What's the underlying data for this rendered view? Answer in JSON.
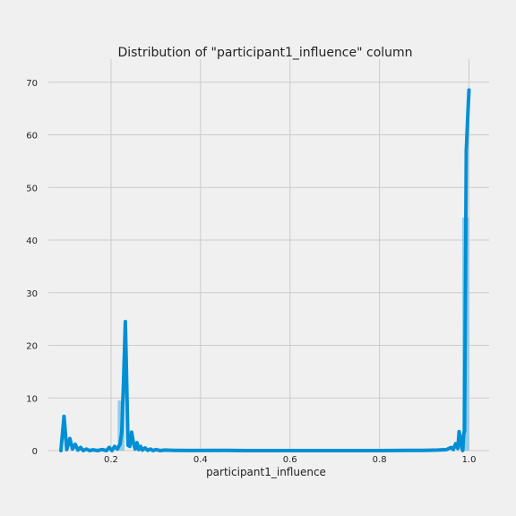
{
  "chart_data": {
    "type": "area",
    "title": "Distribution of \"participant1_influence\" column",
    "xlabel": "participant1_influence",
    "ylabel": "",
    "xlim": [
      0.06,
      1.045
    ],
    "ylim": [
      0,
      72
    ],
    "x_ticks": [
      0.2,
      0.4,
      0.6,
      0.8,
      1.0
    ],
    "x_tick_labels": [
      "0.2",
      "0.4",
      "0.6",
      "0.8",
      "1.0"
    ],
    "y_ticks": [
      0,
      10,
      20,
      30,
      40,
      50,
      60,
      70
    ],
    "y_tick_labels": [
      "0",
      "10",
      "20",
      "30",
      "40",
      "50",
      "60",
      "70"
    ],
    "grid": true,
    "legend": "none",
    "histogram": {
      "bins": [
        {
          "x0": 0.215,
          "x1": 0.23,
          "value": 9.5
        },
        {
          "x0": 0.985,
          "x1": 1.0,
          "value": 44.3
        }
      ]
    },
    "kde": {
      "x": [
        0.088,
        0.095,
        0.101,
        0.108,
        0.114,
        0.12,
        0.126,
        0.132,
        0.138,
        0.145,
        0.152,
        0.16,
        0.17,
        0.18,
        0.19,
        0.196,
        0.202,
        0.208,
        0.214,
        0.22,
        0.224,
        0.228,
        0.232,
        0.235,
        0.238,
        0.242,
        0.246,
        0.25,
        0.254,
        0.258,
        0.262,
        0.266,
        0.27,
        0.276,
        0.282,
        0.288,
        0.294,
        0.3,
        0.31,
        0.32,
        0.34,
        0.38,
        0.45,
        0.5,
        0.6,
        0.7,
        0.8,
        0.86,
        0.9,
        0.93,
        0.95,
        0.96,
        0.965,
        0.97,
        0.975,
        0.978,
        0.981,
        0.984,
        0.986,
        0.988,
        0.99,
        0.992,
        0.994,
        0.996,
        0.998,
        1.0
      ],
      "y": [
        0,
        6.5,
        0.2,
        2.3,
        0.3,
        1.2,
        0.1,
        0.6,
        0,
        0.3,
        0,
        0.15,
        0,
        0.2,
        0,
        0.6,
        0,
        0.8,
        0.3,
        1.2,
        3.5,
        13,
        24.5,
        13,
        1,
        0.8,
        3.5,
        1.5,
        0.3,
        1.5,
        0.2,
        0.8,
        0.1,
        0.5,
        0.05,
        0.3,
        0,
        0.2,
        0,
        0.1,
        0.05,
        0.02,
        0.05,
        0,
        0,
        0,
        0,
        0.05,
        0.05,
        0.1,
        0.2,
        0.6,
        0.2,
        1.3,
        0.4,
        3.6,
        2,
        0.5,
        0,
        3,
        3.8,
        30,
        57,
        61,
        65,
        68.5
      ]
    },
    "colors": {
      "line": "#008fd5",
      "bars": "#7fc7ea",
      "grid": "#cbcbcb",
      "background": "#f0f0f0"
    }
  }
}
